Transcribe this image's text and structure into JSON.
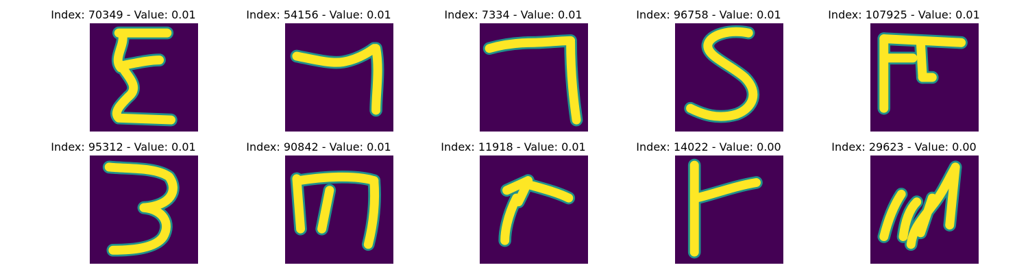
{
  "chart_data": {
    "type": "image-grid",
    "rows": 2,
    "columns": 5,
    "colormap": "viridis",
    "background_color": "#440154",
    "stroke_color": "#fde725",
    "edge_color": "#21918c",
    "axes_visible": false,
    "panels": [
      {
        "title": "Index: 70349 - Value: 0.01",
        "index": 70349,
        "value": 0.01,
        "glyph": "E"
      },
      {
        "title": "Index: 54156 - Value: 0.01",
        "index": 54156,
        "value": 0.01,
        "glyph": "hook"
      },
      {
        "title": "Index: 7334 - Value: 0.01",
        "index": 7334,
        "value": 0.01,
        "glyph": "7"
      },
      {
        "title": "Index: 96758 - Value: 0.01",
        "index": 96758,
        "value": 0.01,
        "glyph": "S"
      },
      {
        "title": "Index: 107925 - Value: 0.01",
        "index": 107925,
        "value": 0.01,
        "glyph": "pi"
      },
      {
        "title": "Index: 95312 - Value: 0.01",
        "index": 95312,
        "value": 0.01,
        "glyph": "3"
      },
      {
        "title": "Index: 90842 - Value: 0.01",
        "index": 90842,
        "value": 0.01,
        "glyph": "m"
      },
      {
        "title": "Index: 11918 - Value: 0.01",
        "index": 11918,
        "value": 0.01,
        "glyph": "angle"
      },
      {
        "title": "Index: 14022 - Value: 0.00",
        "index": 14022,
        "value": 0.0,
        "glyph": "T-rotated"
      },
      {
        "title": "Index: 29623 - Value: 0.00",
        "index": 29623,
        "value": 0.0,
        "glyph": "trident"
      }
    ]
  }
}
